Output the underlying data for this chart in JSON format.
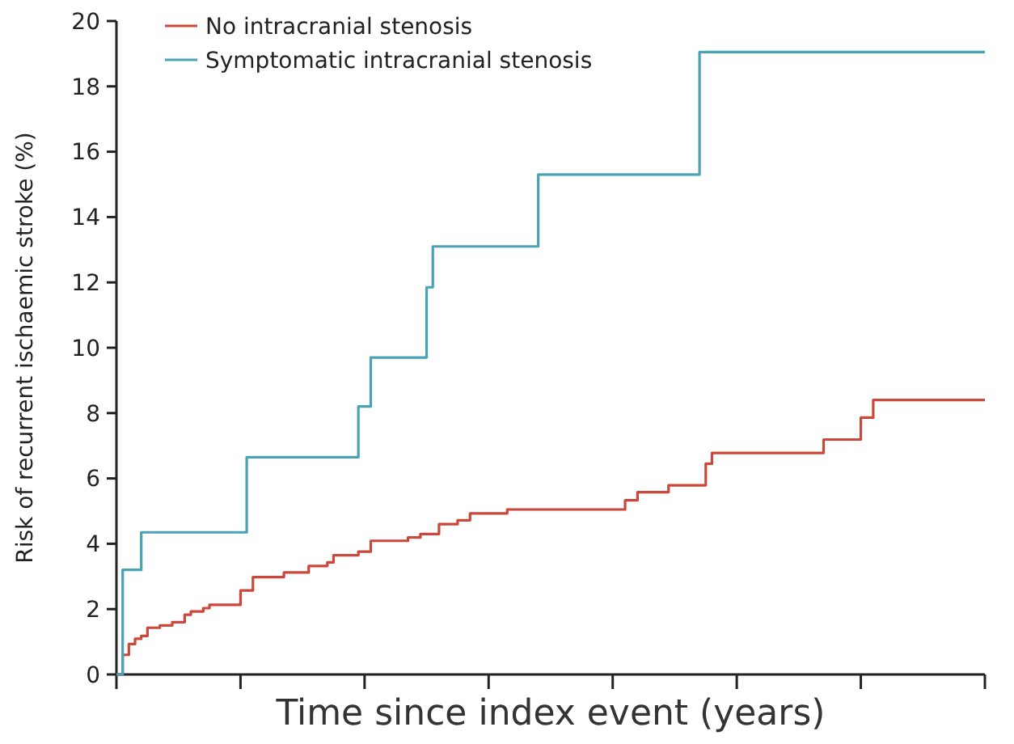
{
  "chart_data": {
    "type": "step",
    "xlabel": "Time since index event (years)",
    "ylabel": "Risk of recurrent ischaemic stroke (%)",
    "categories": [
      null,
      null,
      null,
      null,
      null,
      null,
      null,
      null,
      null,
      null,
      null,
      null,
      null,
      null,
      null,
      null,
      null,
      null,
      null,
      null,
      null,
      null,
      null,
      null,
      null,
      null,
      null,
      null,
      null,
      null,
      null,
      null,
      null,
      null,
      null,
      null,
      null,
      null,
      null,
      null,
      null,
      null,
      null,
      null,
      null,
      null,
      null,
      null,
      null,
      null,
      null,
      null,
      null,
      null,
      null,
      null,
      null,
      null,
      null,
      null,
      null,
      null,
      null,
      null,
      null,
      null,
      null,
      null,
      null,
      null,
      null,
      null,
      null,
      null,
      null,
      null,
      null,
      null,
      null,
      null,
      null,
      null,
      null,
      null,
      null,
      null,
      null,
      null,
      null,
      null,
      null,
      null,
      null,
      null,
      null,
      null,
      null,
      null,
      null,
      null,
      null,
      null,
      null,
      null,
      null,
      null,
      null,
      null,
      null,
      null,
      null,
      null,
      null,
      null,
      null,
      null,
      null,
      null,
      null,
      null,
      null,
      null,
      null,
      null,
      null,
      null,
      null,
      null,
      null,
      null,
      null,
      null,
      null,
      null,
      null,
      null,
      null,
      null,
      null,
      null,
      null
    ],
    "ylim": [
      0,
      20
    ],
    "yticks": [
      0,
      2,
      4,
      6,
      8,
      10,
      12,
      14,
      16,
      18,
      20
    ],
    "grid": false,
    "legend": "top left",
    "marker": "none",
    "line_style": "solid",
    "series": [
      {
        "name": "No intracranial stenosis",
        "color": "#c9473b",
        "values": [
          0,
          0.6,
          0.93,
          1.09,
          1.18,
          1.43,
          1.43,
          1.5,
          1.5,
          1.6,
          1.6,
          1.83,
          1.93,
          1.93,
          2.03,
          2.13,
          2.13,
          2.13,
          2.13,
          2.13,
          2.57,
          2.57,
          2.98,
          2.98,
          2.98,
          2.98,
          2.98,
          3.12,
          3.12,
          3.12,
          3.12,
          3.32,
          3.32,
          3.32,
          3.43,
          3.65,
          3.65,
          3.65,
          3.65,
          3.76,
          3.76,
          4.09,
          4.09,
          4.09,
          4.09,
          4.09,
          4.09,
          4.19,
          4.19,
          4.3,
          4.3,
          4.3,
          4.6,
          4.6,
          4.6,
          4.72,
          4.72,
          4.93,
          4.93,
          4.93,
          4.93,
          4.93,
          4.93,
          5.05,
          5.05,
          5.05,
          5.05,
          5.05,
          5.05,
          5.05,
          5.05,
          5.05,
          5.05,
          5.05,
          5.05,
          5.05,
          5.05,
          5.05,
          5.05,
          5.05,
          5.05,
          5.05,
          5.33,
          5.33,
          5.58,
          5.58,
          5.58,
          5.58,
          5.58,
          5.79,
          5.79,
          5.79,
          5.79,
          5.79,
          5.79,
          6.45,
          6.78,
          6.78,
          6.78,
          6.78,
          6.78,
          6.78,
          6.78,
          6.78,
          6.78,
          6.78,
          6.78,
          6.78,
          6.78,
          6.78,
          6.78,
          6.78,
          6.78,
          6.78,
          7.19,
          7.19,
          7.19,
          7.19,
          7.19,
          7.19,
          7.86,
          7.86,
          8.4,
          8.4,
          8.4,
          8.4,
          8.4,
          8.4,
          8.4,
          8.4,
          8.4,
          8.4,
          8.4,
          8.4,
          8.4,
          8.4,
          8.4,
          8.4,
          8.4,
          8.4,
          8.4
        ]
      },
      {
        "name": "Symptomatic intracranial stenosis",
        "color": "#4aa3b5",
        "values": [
          0,
          3.2,
          3.2,
          3.2,
          4.35,
          4.35,
          4.35,
          4.35,
          4.35,
          4.35,
          4.35,
          4.35,
          4.35,
          4.35,
          4.35,
          4.35,
          4.35,
          4.35,
          4.35,
          4.35,
          4.35,
          6.65,
          6.65,
          6.65,
          6.65,
          6.65,
          6.65,
          6.65,
          6.65,
          6.65,
          6.65,
          6.65,
          6.65,
          6.65,
          6.65,
          6.65,
          6.65,
          6.65,
          6.65,
          8.2,
          8.2,
          9.7,
          9.7,
          9.7,
          9.7,
          9.7,
          9.7,
          9.7,
          9.7,
          9.7,
          11.85,
          13.1,
          13.1,
          13.1,
          13.1,
          13.1,
          13.1,
          13.1,
          13.1,
          13.1,
          13.1,
          13.1,
          13.1,
          13.1,
          13.1,
          13.1,
          13.1,
          13.1,
          15.3,
          15.3,
          15.3,
          15.3,
          15.3,
          15.3,
          15.3,
          15.3,
          15.3,
          15.3,
          15.3,
          15.3,
          15.3,
          15.3,
          15.3,
          15.3,
          15.3,
          15.3,
          15.3,
          15.3,
          15.3,
          15.3,
          15.3,
          15.3,
          15.3,
          15.3,
          19.05,
          19.05,
          19.05,
          19.05,
          19.05,
          19.05,
          19.05,
          19.05,
          19.05,
          19.05,
          19.05,
          19.05,
          19.05,
          19.05,
          19.05,
          19.05,
          19.05,
          19.05,
          19.05,
          19.05,
          19.05,
          19.05,
          19.05,
          19.05,
          19.05,
          19.05,
          19.05,
          19.05,
          19.05,
          19.05,
          19.05,
          19.05,
          19.05,
          19.05,
          19.05,
          19.05,
          19.05,
          19.05,
          19.05,
          19.05,
          19.05,
          19.05,
          19.05,
          19.05,
          19.05,
          19.05,
          19.05
        ]
      }
    ]
  }
}
